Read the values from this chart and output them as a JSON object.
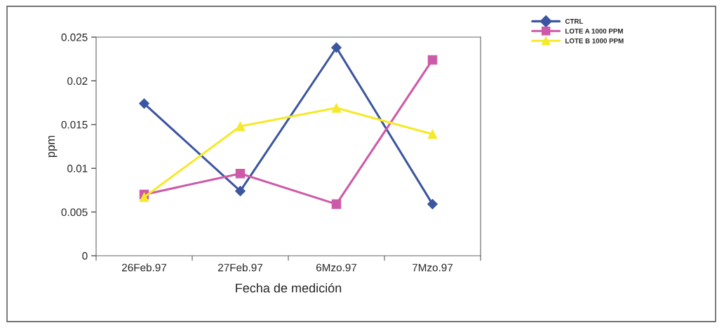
{
  "chart_data": {
    "type": "line",
    "xlabel": "Fecha de medición",
    "ylabel": "ppm",
    "categories": [
      "26Feb.97",
      "27Feb.97",
      "6Mzo.97",
      "7Mzo.97"
    ],
    "series": [
      {
        "name": "CTRL",
        "color": "#3c55a0",
        "marker": "diamond",
        "values": [
          0.0174,
          0.0074,
          0.0238,
          0.0059
        ]
      },
      {
        "name": "LOTE A 1000 PPM",
        "color": "#cc5aa8",
        "marker": "square",
        "values": [
          0.007,
          0.0094,
          0.0059,
          0.0224
        ]
      },
      {
        "name": "LOTE B 1000 PPM",
        "color": "#f5e92a",
        "marker": "triangle",
        "values": [
          0.0067,
          0.0148,
          0.0169,
          0.0139
        ]
      }
    ],
    "ylim": [
      0,
      0.025
    ],
    "yticks": [
      {
        "value": 0,
        "label": "0"
      },
      0.005,
      0.01,
      0.015,
      0.02,
      0.025
    ],
    "grid": false,
    "legend": "top right"
  }
}
